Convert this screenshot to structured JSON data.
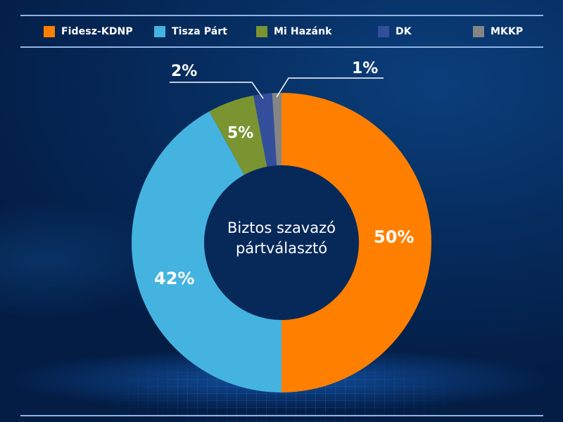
{
  "legend": {
    "items": [
      {
        "label": "Fidesz-KDNP",
        "color": "#ff8000"
      },
      {
        "label": "Tisza Párt",
        "color": "#45b3e0"
      },
      {
        "label": "Mi Hazánk",
        "color": "#7a9432"
      },
      {
        "label": "DK",
        "color": "#334f9c"
      },
      {
        "label": "MKKP",
        "color": "#858585"
      }
    ]
  },
  "donut": {
    "center_label_line1": "Biztos szavazó",
    "center_label_line2": "pártválasztó",
    "labels": {
      "fidesz": "50%",
      "tisza": "42%",
      "mihazank": "5%",
      "dk": "2%",
      "mkkp": "1%"
    }
  },
  "chart_data": {
    "type": "pie",
    "subtype": "donut",
    "title": "Biztos szavazó pártválasztó",
    "categories": [
      "Fidesz-KDNP",
      "Tisza Párt",
      "Mi Hazánk",
      "DK",
      "MKKP"
    ],
    "values": [
      50,
      42,
      5,
      2,
      1
    ],
    "unit": "%",
    "colors": [
      "#ff8000",
      "#45b3e0",
      "#7a9432",
      "#334f9c",
      "#858585"
    ],
    "legend_position": "top",
    "start_angle": "12 o'clock, clockwise"
  }
}
